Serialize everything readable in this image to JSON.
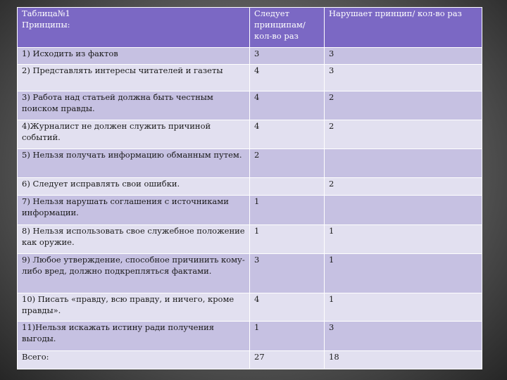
{
  "table": {
    "header": {
      "col1_line1": "Таблица№1",
      "col1_line2": "Принципы:",
      "col2": "Следует принципам/ кол-во раз",
      "col3": "Нарушает принцип/ кол-во раз"
    },
    "rows": [
      {
        "principle": "1) Исходить из фактов",
        "follows": "3",
        "violates": "3"
      },
      {
        "principle": "2) Представлять интересы читателей и газеты",
        "follows": "4",
        "violates": "3"
      },
      {
        "principle": "3)  Работа над статьей должна быть честным поиском правды.",
        "follows": "4",
        "violates": "2"
      },
      {
        "principle": "4)Журналист не должен служить причиной событий.",
        "follows": "4",
        "violates": "2"
      },
      {
        "principle": "5) Нельзя получать информацию обманным путем.",
        "follows": "2",
        "violates": ""
      },
      {
        "principle": "6) Следует исправлять свои ошибки.",
        "follows": "",
        "violates": "2"
      },
      {
        "principle": "7) Нельзя нарушать соглашения с источниками информации.",
        "follows": "1",
        "violates": ""
      },
      {
        "principle": "8) Нельзя использовать свое служебное положение как оружие.",
        "follows": "1",
        "violates": "1"
      },
      {
        "principle": "9)  Любое утверждение, способное причинить кому-либо вред, должно подкрепляться фактами.",
        "follows": "3",
        "violates": "1"
      },
      {
        "principle": "10)  Писать «правду, всю правду, и ничего, кроме правды».",
        "follows": "4",
        "violates": "1"
      },
      {
        "principle": "11)Нельзя искажать истину ради получения выгоды.",
        "follows": "1",
        "violates": "3"
      },
      {
        "principle": "Всего:",
        "follows": "27",
        "violates": "18"
      }
    ]
  }
}
